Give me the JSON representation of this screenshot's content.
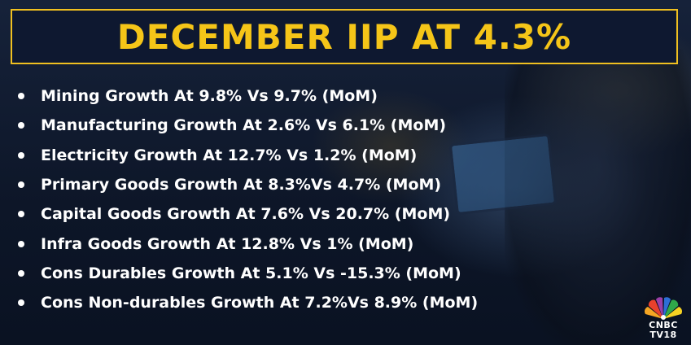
{
  "title": "DECEMBER IIP AT 4.3%",
  "bullets": [
    "Mining Growth At 9.8% Vs 9.7% (MoM)",
    "Manufacturing Growth At 2.6% Vs 6.1% (MoM)",
    "Electricity Growth At 12.7% Vs 1.2% (MoM)",
    "Primary Goods Growth At 8.3%Vs 4.7% (MoM)",
    "Capital Goods Growth At 7.6% Vs 20.7% (MoM)",
    "Infra Goods Growth At 12.8% Vs 1% (MoM)",
    "Cons Durables Growth At 5.1% Vs -15.3% (MoM)",
    "Cons Non-durables Growth At 7.2%Vs 8.9% (MoM)"
  ],
  "logo": {
    "line1": "CNBC",
    "line2": "TV18",
    "icon": "peacock-icon"
  },
  "colors": {
    "accent": "#f5c518",
    "background": "#0f1a2e",
    "text": "#ffffff"
  }
}
